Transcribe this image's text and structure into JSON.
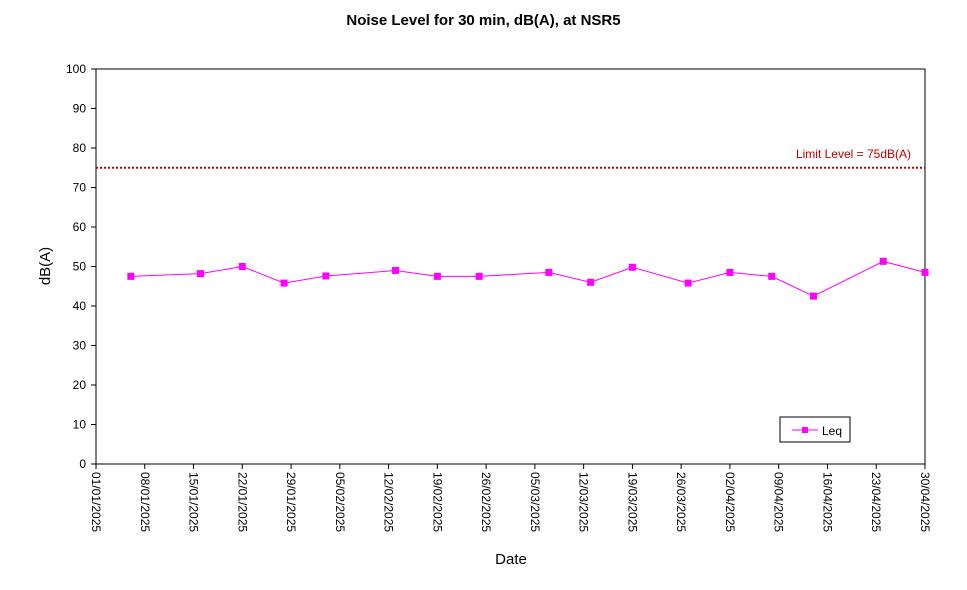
{
  "chart_data": {
    "type": "line",
    "title": "Noise Level for 30 min, dB(A), at NSR5",
    "xlabel": "Date",
    "ylabel": "dB(A)",
    "ylim": [
      0,
      100
    ],
    "y_ticks": [
      0,
      10,
      20,
      30,
      40,
      50,
      60,
      70,
      80,
      90,
      100
    ],
    "x_range": [
      "01/01/2025",
      "30/04/2025"
    ],
    "x_ticks": [
      "01/01/2025",
      "08/01/2025",
      "15/01/2025",
      "22/01/2025",
      "29/01/2025",
      "05/02/2025",
      "12/02/2025",
      "19/02/2025",
      "26/02/2025",
      "05/03/2025",
      "12/03/2025",
      "19/03/2025",
      "26/03/2025",
      "02/04/2025",
      "09/04/2025",
      "16/04/2025",
      "23/04/2025",
      "30/04/2025"
    ],
    "grid": false,
    "legend_position": "bottom-right",
    "limit_line": {
      "label": "Limit Level  = 75dB(A)",
      "value": 75,
      "color": "#c00000"
    },
    "series": [
      {
        "name": "Leq",
        "color": "#ff00ff",
        "marker": "square",
        "x": [
          "06/01/2025",
          "16/01/2025",
          "22/01/2025",
          "28/01/2025",
          "03/02/2025",
          "13/02/2025",
          "19/02/2025",
          "25/02/2025",
          "07/03/2025",
          "13/03/2025",
          "19/03/2025",
          "27/03/2025",
          "02/04/2025",
          "08/04/2025",
          "14/04/2025",
          "24/04/2025",
          "30/04/2025"
        ],
        "values": [
          47.5,
          48.2,
          50.0,
          45.8,
          47.6,
          49.0,
          47.5,
          47.5,
          48.5,
          46.0,
          49.8,
          45.8,
          48.5,
          47.5,
          42.5,
          51.3,
          48.5
        ]
      }
    ]
  }
}
